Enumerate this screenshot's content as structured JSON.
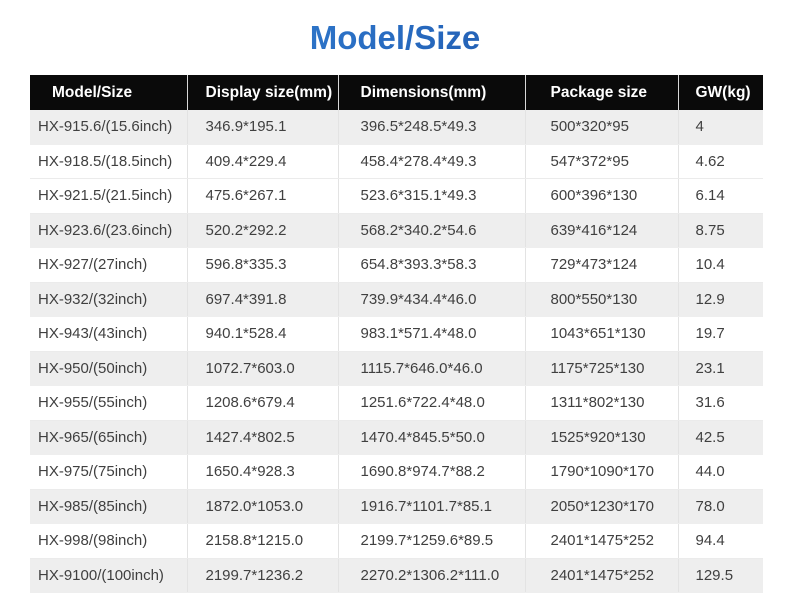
{
  "title": "Model/Size",
  "colors": {
    "title_gradient_start": "#3e8ed8",
    "title_gradient_end": "#17479c",
    "header_bg": "#0a0a0a",
    "header_text": "#ffffff",
    "row_shade": "#eeeeee",
    "body_text": "#404040"
  },
  "table": {
    "columns": [
      "Model/Size",
      "Display size(mm)",
      "Dimensions(mm)",
      "Package size",
      "GW(kg)"
    ],
    "rows": [
      {
        "model": "HX-915.6/(15.6inch)",
        "display_size": "346.9*195.1",
        "dimensions": "396.5*248.5*49.3",
        "package_size": "500*320*95",
        "gw": "4",
        "shaded": true
      },
      {
        "model": "HX-918.5/(18.5inch)",
        "display_size": "409.4*229.4",
        "dimensions": "458.4*278.4*49.3",
        "package_size": "547*372*95",
        "gw": "4.62",
        "shaded": false
      },
      {
        "model": "HX-921.5/(21.5inch)",
        "display_size": "475.6*267.1",
        "dimensions": "523.6*315.1*49.3",
        "package_size": "600*396*130",
        "gw": "6.14",
        "shaded": false
      },
      {
        "model": "HX-923.6/(23.6inch)",
        "display_size": "520.2*292.2",
        "dimensions": "568.2*340.2*54.6",
        "package_size": "639*416*124",
        "gw": "8.75",
        "shaded": true
      },
      {
        "model": "HX-927/(27inch)",
        "display_size": "596.8*335.3",
        "dimensions": "654.8*393.3*58.3",
        "package_size": "729*473*124",
        "gw": "10.4",
        "shaded": false
      },
      {
        "model": "HX-932/(32inch)",
        "display_size": "697.4*391.8",
        "dimensions": "739.9*434.4*46.0",
        "package_size": "800*550*130",
        "gw": "12.9",
        "shaded": true
      },
      {
        "model": "HX-943/(43inch)",
        "display_size": "940.1*528.4",
        "dimensions": "983.1*571.4*48.0",
        "package_size": "1043*651*130",
        "gw": "19.7",
        "shaded": false
      },
      {
        "model": "HX-950/(50inch)",
        "display_size": "1072.7*603.0",
        "dimensions": "1115.7*646.0*46.0",
        "package_size": "1175*725*130",
        "gw": "23.1",
        "shaded": true
      },
      {
        "model": "HX-955/(55inch)",
        "display_size": "1208.6*679.4",
        "dimensions": "1251.6*722.4*48.0",
        "package_size": "1311*802*130",
        "gw": "31.6",
        "shaded": false
      },
      {
        "model": "HX-965/(65inch)",
        "display_size": "1427.4*802.5",
        "dimensions": "1470.4*845.5*50.0",
        "package_size": "1525*920*130",
        "gw": "42.5",
        "shaded": true
      },
      {
        "model": "HX-975/(75inch)",
        "display_size": "1650.4*928.3",
        "dimensions": "1690.8*974.7*88.2",
        "package_size": "1790*1090*170",
        "gw": "44.0",
        "shaded": false
      },
      {
        "model": "HX-985/(85inch)",
        "display_size": "1872.0*1053.0",
        "dimensions": "1916.7*1101.7*85.1",
        "package_size": "2050*1230*170",
        "gw": "78.0",
        "shaded": true
      },
      {
        "model": "HX-998/(98inch)",
        "display_size": "2158.8*1215.0",
        "dimensions": "2199.7*1259.6*89.5",
        "package_size": "2401*1475*252",
        "gw": "94.4",
        "shaded": false
      },
      {
        "model": "HX-9100/(100inch)",
        "display_size": "2199.7*1236.2",
        "dimensions": "2270.2*1306.2*111.0",
        "package_size": "2401*1475*252",
        "gw": "129.5",
        "shaded": true
      }
    ]
  }
}
